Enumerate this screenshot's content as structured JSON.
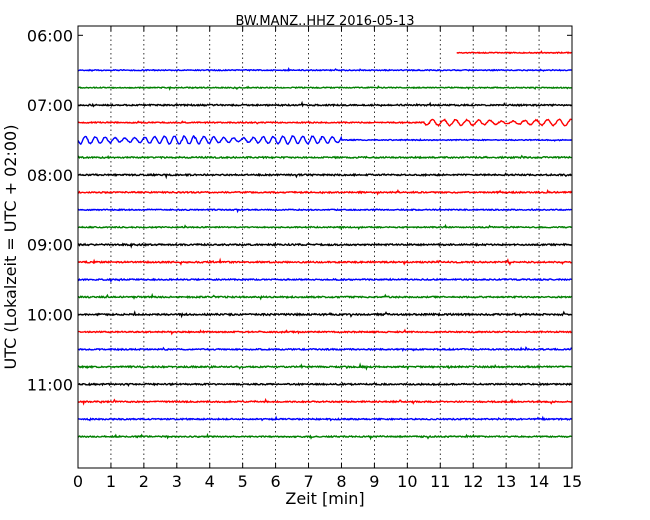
{
  "chart_data": {
    "type": "line",
    "title": "BW.MANZ..HHZ 2016-05-13",
    "xlabel": "Zeit  [min]",
    "ylabel": "UTC (Lokalzeit = UTC + 02:00)",
    "xlim": [
      0,
      15
    ],
    "x_ticks": [
      0,
      1,
      2,
      3,
      4,
      5,
      6,
      7,
      8,
      9,
      10,
      11,
      12,
      13,
      14,
      15
    ],
    "y_time_range": [
      "05:52",
      "12:12"
    ],
    "y_ticks": [
      "06:00",
      "07:00",
      "08:00",
      "09:00",
      "10:00",
      "11:00"
    ],
    "grid": "x-dotted",
    "trace_colors": [
      "#ff0000",
      "#0000ff",
      "#008000",
      "#000000"
    ],
    "traces": [
      {
        "time": "06:15",
        "color": "#ff0000",
        "x_start": 11.5,
        "x_end": 15,
        "amplitude": 0.3
      },
      {
        "time": "06:30",
        "color": "#0000ff",
        "x_start": 0,
        "x_end": 15,
        "amplitude": 0.3
      },
      {
        "time": "06:45",
        "color": "#008000",
        "x_start": 0,
        "x_end": 15,
        "amplitude": 0.3
      },
      {
        "time": "07:00",
        "color": "#000000",
        "x_start": 0,
        "x_end": 15,
        "amplitude": 0.45
      },
      {
        "time": "07:15",
        "color": "#ff0000",
        "x_start": 0,
        "x_end": 15,
        "amplitude": 0.35,
        "event": {
          "x_start": 10.5,
          "x_end": 15,
          "amp": 1.8,
          "period": 0.35
        }
      },
      {
        "time": "07:30",
        "color": "#0000ff",
        "x_start": 0,
        "x_end": 15,
        "amplitude": 0.3,
        "event": {
          "x_start": 0,
          "x_end": 8,
          "amp": 2.5,
          "period": 0.3
        }
      },
      {
        "time": "07:45",
        "color": "#008000",
        "x_start": 0,
        "x_end": 15,
        "amplitude": 0.45
      },
      {
        "time": "08:00",
        "color": "#000000",
        "x_start": 0,
        "x_end": 15,
        "amplitude": 0.45
      },
      {
        "time": "08:15",
        "color": "#ff0000",
        "x_start": 0,
        "x_end": 15,
        "amplitude": 0.4
      },
      {
        "time": "08:30",
        "color": "#0000ff",
        "x_start": 0,
        "x_end": 15,
        "amplitude": 0.35
      },
      {
        "time": "08:45",
        "color": "#008000",
        "x_start": 0,
        "x_end": 15,
        "amplitude": 0.35
      },
      {
        "time": "09:00",
        "color": "#000000",
        "x_start": 0,
        "x_end": 15,
        "amplitude": 0.5
      },
      {
        "time": "09:15",
        "color": "#ff0000",
        "x_start": 0,
        "x_end": 15,
        "amplitude": 0.45
      },
      {
        "time": "09:30",
        "color": "#0000ff",
        "x_start": 0,
        "x_end": 15,
        "amplitude": 0.4
      },
      {
        "time": "09:45",
        "color": "#008000",
        "x_start": 0,
        "x_end": 15,
        "amplitude": 0.45
      },
      {
        "time": "10:00",
        "color": "#000000",
        "x_start": 0,
        "x_end": 15,
        "amplitude": 0.5
      },
      {
        "time": "10:15",
        "color": "#ff0000",
        "x_start": 0,
        "x_end": 15,
        "amplitude": 0.4
      },
      {
        "time": "10:30",
        "color": "#0000ff",
        "x_start": 0,
        "x_end": 15,
        "amplitude": 0.4
      },
      {
        "time": "10:45",
        "color": "#008000",
        "x_start": 0,
        "x_end": 15,
        "amplitude": 0.45
      },
      {
        "time": "11:00",
        "color": "#000000",
        "x_start": 0,
        "x_end": 15,
        "amplitude": 0.45
      },
      {
        "time": "11:15",
        "color": "#ff0000",
        "x_start": 0,
        "x_end": 15,
        "amplitude": 0.4
      },
      {
        "time": "11:30",
        "color": "#0000ff",
        "x_start": 0,
        "x_end": 15,
        "amplitude": 0.4
      },
      {
        "time": "11:45",
        "color": "#008000",
        "x_start": 0,
        "x_end": 15,
        "amplitude": 0.4
      }
    ]
  }
}
